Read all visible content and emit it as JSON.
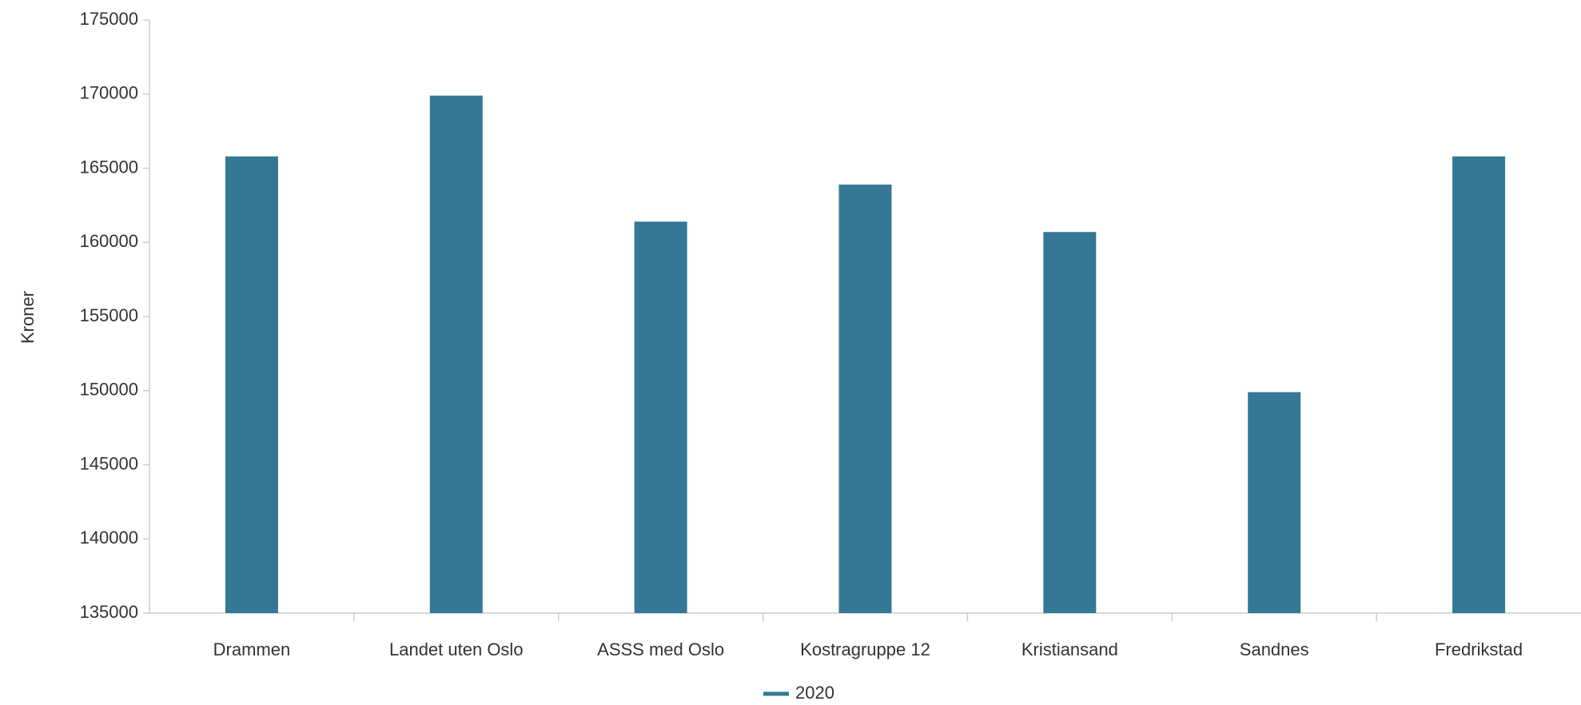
{
  "chart_data": {
    "type": "bar",
    "y_label": "Kroner",
    "categories": [
      "Drammen",
      "Landet uten Oslo",
      "ASSS med Oslo",
      "Kostragruppe 12",
      "Kristiansand",
      "Sandnes",
      "Fredrikstad"
    ],
    "series": [
      {
        "name": "2020",
        "color": "#347895",
        "values": [
          165800,
          169900,
          161400,
          163900,
          160700,
          149900,
          165800
        ]
      }
    ],
    "ylim": [
      135000,
      175000
    ],
    "yticks": [
      135000,
      140000,
      145000,
      150000,
      155000,
      160000,
      165000,
      170000,
      175000
    ],
    "grid": false
  }
}
